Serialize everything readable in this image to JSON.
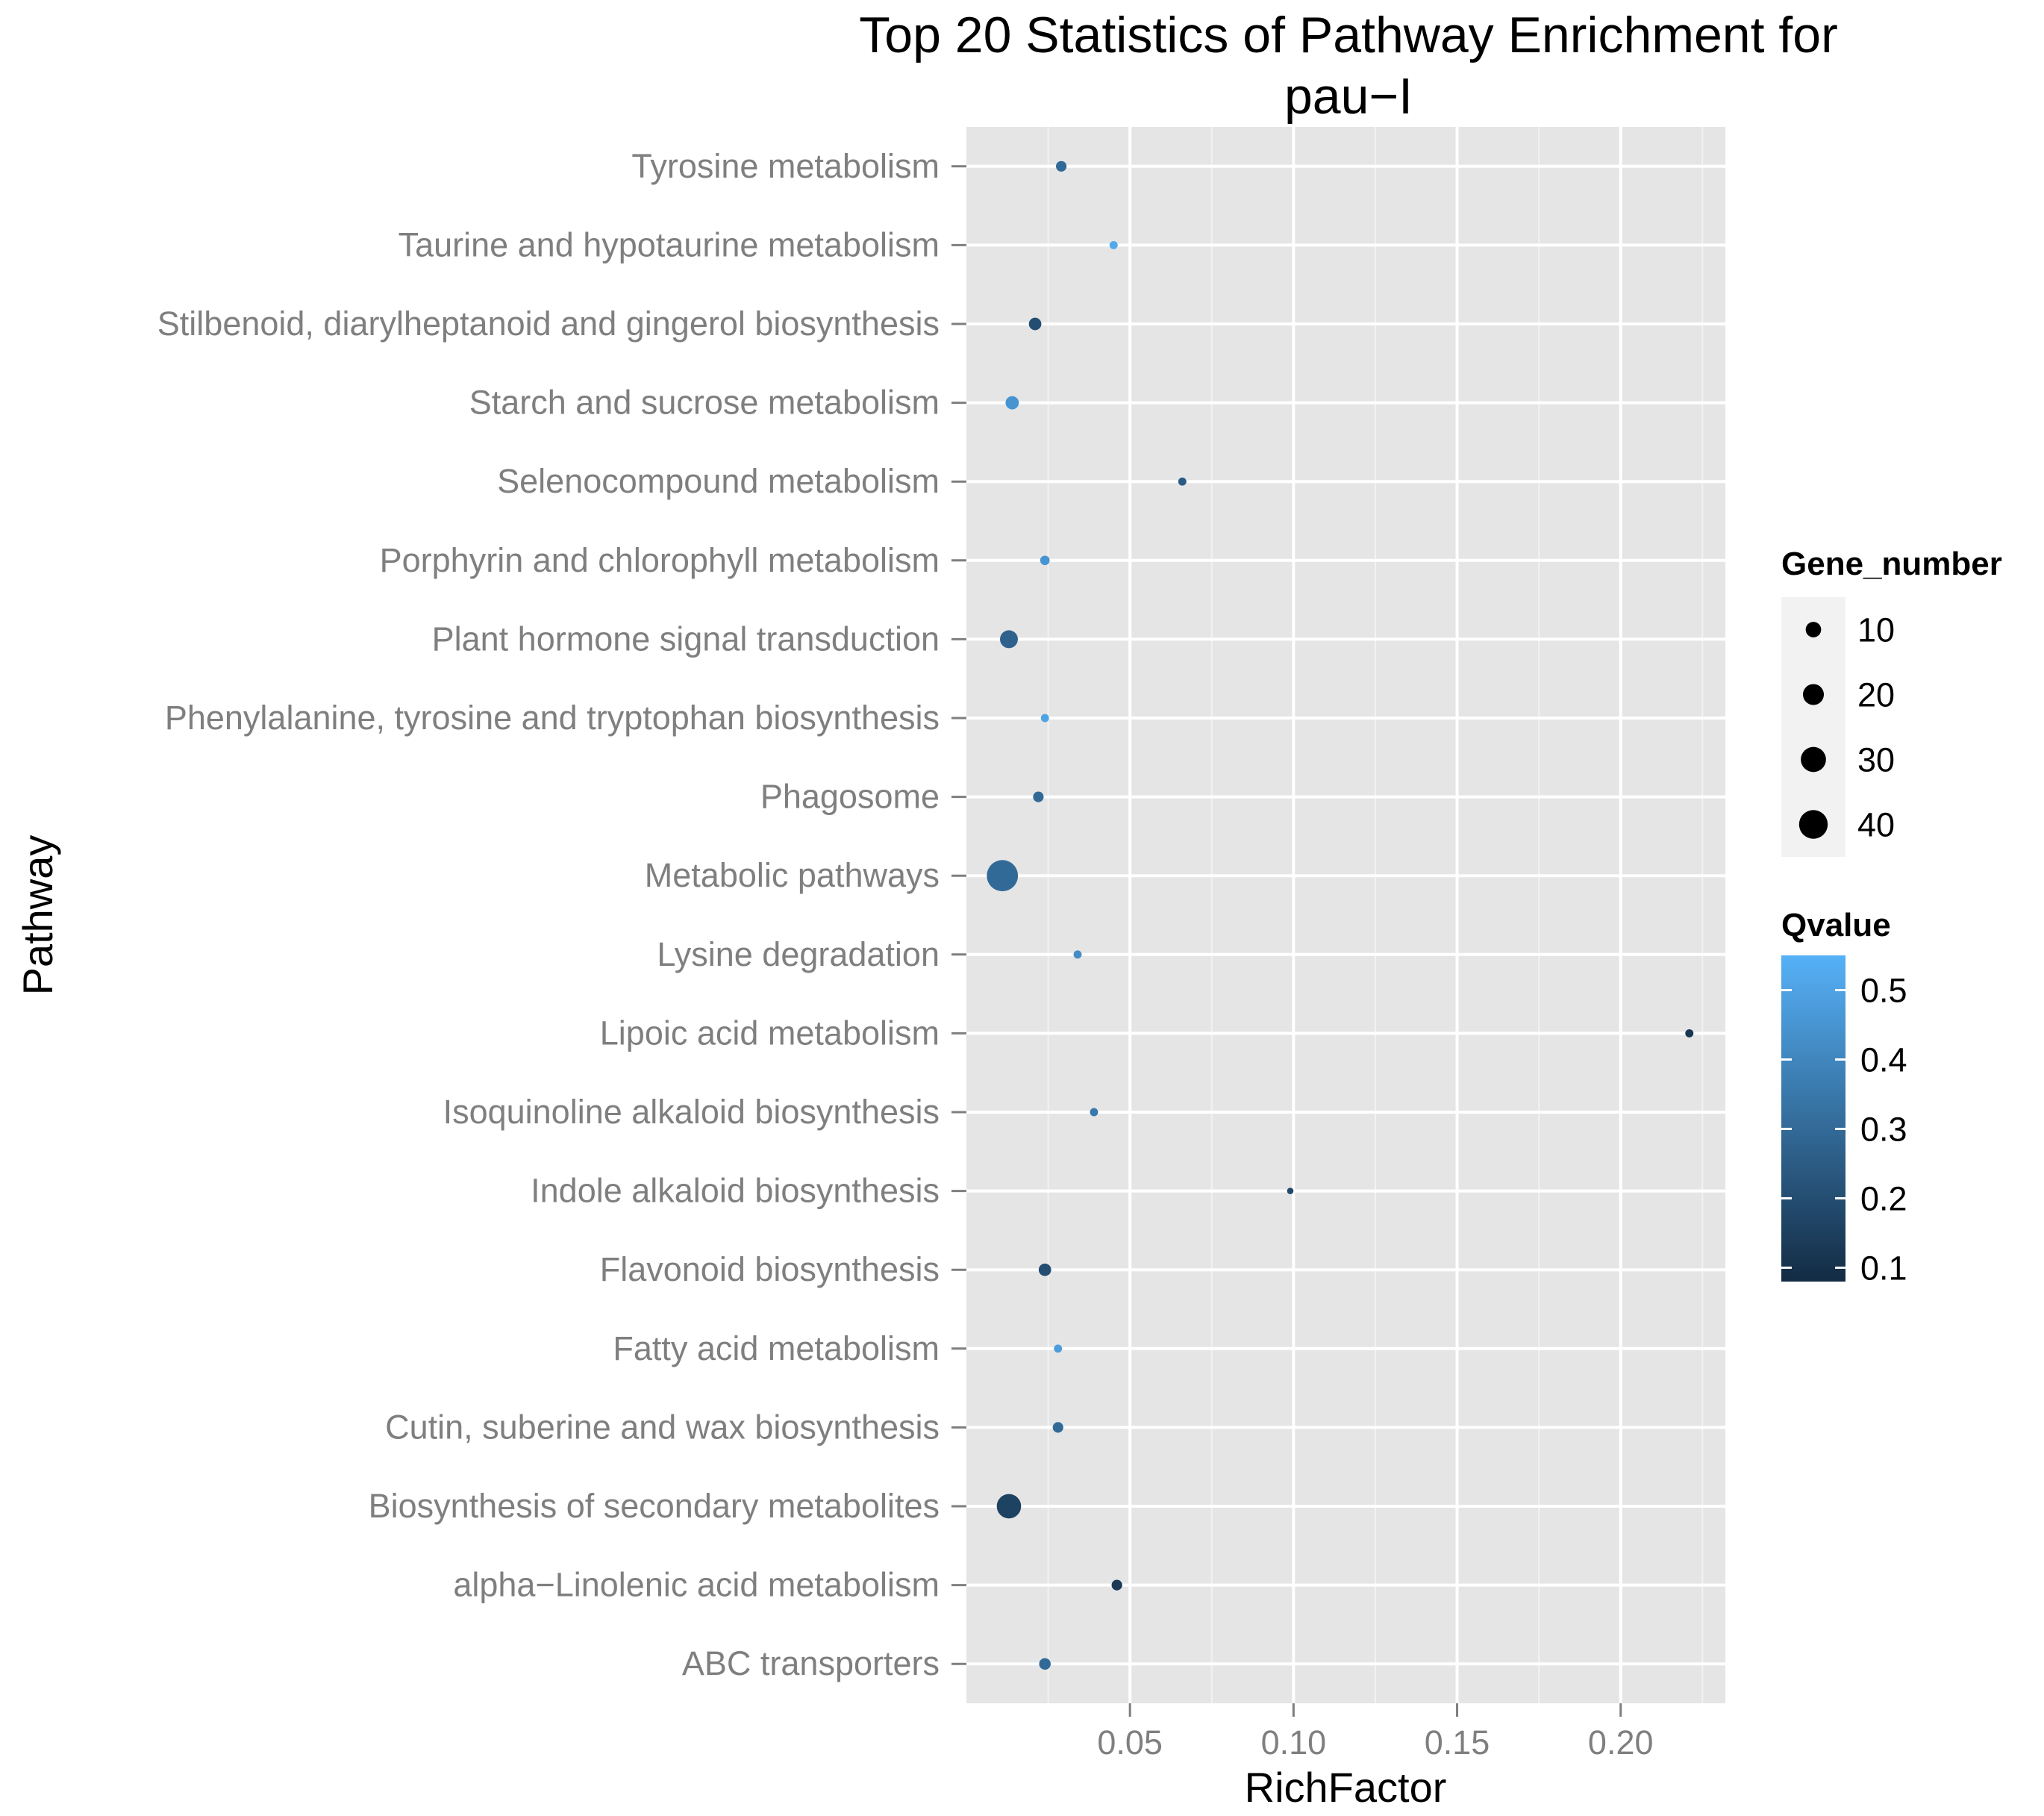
{
  "chart_data": {
    "type": "scatter",
    "title": "Top 20 Statistics of Pathway Enrichment for pau-I",
    "title_lines": [
      "Top 20 Statistics of Pathway Enrichment for",
      "pau−I"
    ],
    "xlabel": "RichFactor",
    "ylabel": "Pathway",
    "xlim": [
      0.0,
      0.232
    ],
    "x_ticks": [
      0.05,
      0.1,
      0.15,
      0.2
    ],
    "x_tick_labels": [
      "0.05",
      "0.10",
      "0.15",
      "0.20"
    ],
    "grid": true,
    "categories": [
      "Tyrosine metabolism",
      "Taurine and hypotaurine metabolism",
      "Stilbenoid, diarylheptanoid and gingerol biosynthesis",
      "Starch and sucrose metabolism",
      "Selenocompound metabolism",
      "Porphyrin and chlorophyll metabolism",
      "Plant hormone signal transduction",
      "Phenylalanine, tyrosine and tryptophan biosynthesis",
      "Phagosome",
      "Metabolic pathways",
      "Lysine degradation",
      "Lipoic acid metabolism",
      "Isoquinoline alkaloid biosynthesis",
      "Indole alkaloid biosynthesis",
      "Flavonoid biosynthesis",
      "Fatty acid metabolism",
      "Cutin, suberine and wax biosynthesis",
      "Biosynthesis of secondary metabolites",
      "alpha−Linolenic acid metabolism",
      "ABC transporters"
    ],
    "points": [
      {
        "pathway": "Tyrosine metabolism",
        "rich_factor": 0.029,
        "gene_number": 4,
        "qvalue": 0.3
      },
      {
        "pathway": "Taurine and hypotaurine metabolism",
        "rich_factor": 0.045,
        "gene_number": 2,
        "qvalue": 0.52
      },
      {
        "pathway": "Stilbenoid, diarylheptanoid and gingerol biosynthesis",
        "rich_factor": 0.021,
        "gene_number": 6,
        "qvalue": 0.2
      },
      {
        "pathway": "Starch and sucrose metabolism",
        "rich_factor": 0.014,
        "gene_number": 7,
        "qvalue": 0.45
      },
      {
        "pathway": "Selenocompound metabolism",
        "rich_factor": 0.066,
        "gene_number": 2,
        "qvalue": 0.25
      },
      {
        "pathway": "Porphyrin and chlorophyll metabolism",
        "rich_factor": 0.024,
        "gene_number": 3,
        "qvalue": 0.45
      },
      {
        "pathway": "Plant hormone signal transduction",
        "rich_factor": 0.013,
        "gene_number": 14,
        "qvalue": 0.27
      },
      {
        "pathway": "Phenylalanine, tyrosine and tryptophan biosynthesis",
        "rich_factor": 0.024,
        "gene_number": 2,
        "qvalue": 0.5
      },
      {
        "pathway": "Phagosome",
        "rich_factor": 0.022,
        "gene_number": 4,
        "qvalue": 0.3
      },
      {
        "pathway": "Metabolic pathways",
        "rich_factor": 0.011,
        "gene_number": 48,
        "qvalue": 0.3
      },
      {
        "pathway": "Lysine degradation",
        "rich_factor": 0.034,
        "gene_number": 2,
        "qvalue": 0.42
      },
      {
        "pathway": "Lipoic acid metabolism",
        "rich_factor": 0.221,
        "gene_number": 2,
        "qvalue": 0.12
      },
      {
        "pathway": "Isoquinoline alkaloid biosynthesis",
        "rich_factor": 0.039,
        "gene_number": 2,
        "qvalue": 0.35
      },
      {
        "pathway": "Indole alkaloid biosynthesis",
        "rich_factor": 0.099,
        "gene_number": 1,
        "qvalue": 0.18
      },
      {
        "pathway": "Flavonoid biosynthesis",
        "rich_factor": 0.024,
        "gene_number": 6,
        "qvalue": 0.2
      },
      {
        "pathway": "Fatty acid metabolism",
        "rich_factor": 0.028,
        "gene_number": 2,
        "qvalue": 0.48
      },
      {
        "pathway": "Cutin, suberine and wax biosynthesis",
        "rich_factor": 0.028,
        "gene_number": 4,
        "qvalue": 0.3
      },
      {
        "pathway": "Biosynthesis of secondary metabolites",
        "rich_factor": 0.013,
        "gene_number": 28,
        "qvalue": 0.16
      },
      {
        "pathway": "alpha−Linolenic acid metabolism",
        "rich_factor": 0.046,
        "gene_number": 4,
        "qvalue": 0.13
      },
      {
        "pathway": "ABC transporters",
        "rich_factor": 0.024,
        "gene_number": 5,
        "qvalue": 0.3
      }
    ],
    "size_legend": {
      "title": "Gene_number",
      "values": [
        10,
        20,
        30,
        40
      ],
      "labels": [
        "10",
        "20",
        "30",
        "40"
      ]
    },
    "color_legend": {
      "title": "Qvalue",
      "range": [
        0.08,
        0.55
      ],
      "ticks": [
        0.1,
        0.2,
        0.3,
        0.4,
        0.5
      ],
      "tick_labels": [
        "0.1",
        "0.2",
        "0.3",
        "0.4",
        "0.5"
      ],
      "low_color": "#132B43",
      "high_color": "#56B1F7"
    },
    "colors": {
      "panel_background": "#e5e5e5",
      "grid_major": "#ffffff",
      "grid_minor": "#f2f2f2",
      "tick_text": "#7f7f7f"
    }
  }
}
